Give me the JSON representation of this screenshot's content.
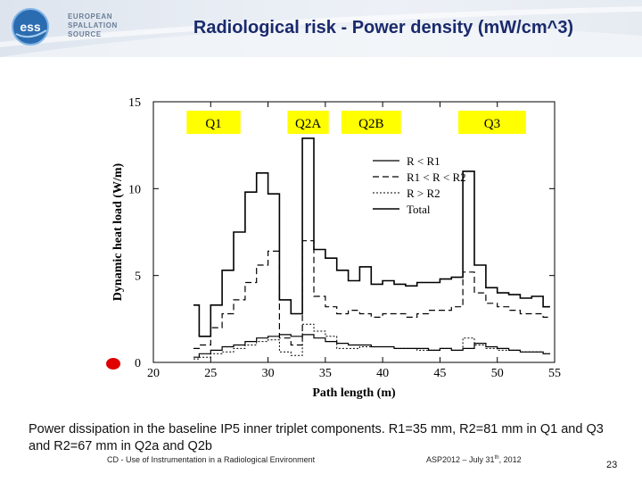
{
  "header": {
    "logo_lines": [
      "EUROPEAN",
      "SPALLATION",
      "SOURCE"
    ],
    "logo_mark": "ess",
    "title": "Radiological risk - Power density (mW/cm^3)",
    "colors": {
      "title": "#1a2a6c",
      "logo": "#2b6cb0"
    }
  },
  "chart_data": {
    "type": "line",
    "xlabel": "Path length (m)",
    "ylabel": "Dynamic heat load (W/m)",
    "xlim": [
      20,
      55
    ],
    "ylim": [
      0,
      15
    ],
    "x_ticks": [
      "20",
      "25",
      "30",
      "35",
      "40",
      "45",
      "50",
      "55"
    ],
    "y_ticks": [
      "0",
      "5",
      "10",
      "15"
    ],
    "grid": false,
    "legend_position": "top-right",
    "section_labels": [
      "Q1",
      "Q2A",
      "Q2B",
      "Q3"
    ],
    "section_label_color": "#ffff00",
    "series": [
      {
        "name": "R < R1",
        "style": "solid",
        "x": [
          23.5,
          24,
          25,
          26,
          27,
          28,
          29,
          30,
          31,
          32,
          33,
          34,
          35,
          36,
          37,
          38,
          39,
          40,
          41,
          42,
          43,
          44,
          45,
          46,
          47,
          48,
          49,
          50,
          51,
          52,
          53,
          54
        ],
        "y": [
          0.3,
          0.5,
          0.7,
          0.9,
          1.0,
          1.2,
          1.4,
          1.5,
          1.6,
          1.5,
          1.6,
          1.4,
          1.2,
          1.1,
          1.0,
          1.0,
          0.9,
          0.9,
          0.8,
          0.8,
          0.8,
          0.7,
          0.8,
          0.7,
          0.8,
          1.1,
          0.9,
          0.8,
          0.7,
          0.6,
          0.6,
          0.5
        ]
      },
      {
        "name": "R1 < R < R2",
        "style": "dashed",
        "x": [
          23.5,
          24,
          25,
          26,
          27,
          28,
          29,
          30,
          31,
          32,
          33,
          34,
          35,
          36,
          37,
          38,
          39,
          40,
          41,
          42,
          43,
          44,
          45,
          46,
          47,
          48,
          49,
          50,
          51,
          52,
          53,
          54
        ],
        "y": [
          0.8,
          1.0,
          2.0,
          2.8,
          3.6,
          4.6,
          5.6,
          6.4,
          1.4,
          1.0,
          7.0,
          3.8,
          3.2,
          2.8,
          3.0,
          2.8,
          2.6,
          2.8,
          2.8,
          2.6,
          2.8,
          3.0,
          3.0,
          3.2,
          5.2,
          4.0,
          3.4,
          3.2,
          3.0,
          2.8,
          2.8,
          2.6
        ]
      },
      {
        "name": "R > R2",
        "style": "dotted",
        "x": [
          23.5,
          24,
          25,
          26,
          27,
          28,
          29,
          30,
          31,
          32,
          33,
          34,
          35,
          36,
          37,
          38,
          39,
          40,
          41,
          42,
          43,
          44,
          45,
          46,
          47,
          48,
          49,
          50,
          51,
          52,
          53,
          54
        ],
        "y": [
          0.2,
          0.3,
          0.5,
          0.6,
          0.8,
          1.0,
          1.2,
          1.3,
          0.6,
          0.4,
          2.2,
          1.8,
          1.5,
          0.8,
          0.8,
          0.9,
          0.9,
          0.9,
          0.8,
          0.8,
          0.7,
          0.7,
          0.8,
          0.7,
          1.4,
          1.0,
          0.8,
          0.7,
          0.7,
          0.6,
          0.6,
          0.5
        ]
      },
      {
        "name": "Total",
        "style": "solid",
        "x": [
          23.5,
          24,
          25,
          26,
          27,
          28,
          29,
          30,
          31,
          32,
          33,
          34,
          35,
          36,
          37,
          38,
          39,
          40,
          41,
          42,
          43,
          44,
          45,
          46,
          47,
          48,
          49,
          50,
          51,
          52,
          53,
          54
        ],
        "y": [
          3.3,
          1.5,
          3.3,
          5.3,
          7.5,
          9.8,
          10.9,
          9.7,
          3.6,
          2.8,
          12.9,
          6.5,
          6.0,
          5.3,
          4.7,
          5.5,
          4.5,
          4.7,
          4.5,
          4.4,
          4.6,
          4.6,
          4.8,
          4.9,
          11.0,
          5.6,
          4.3,
          4.0,
          3.9,
          3.7,
          3.8,
          3.2
        ]
      }
    ]
  },
  "caption": "Power dissipation in the baseline IP5 inner triplet components. R1=35 mm, R2=81 mm in Q1 and Q3 and R2=67 mm in Q2a and Q2b",
  "footer": {
    "left": "CD - Use of Instrumentation in a Radiological Environment",
    "mid_prefix": "ASP2012 – July 31",
    "mid_sup": "th",
    "mid_suffix": ", 2012",
    "page": "23"
  },
  "marker_color": "#e00000"
}
